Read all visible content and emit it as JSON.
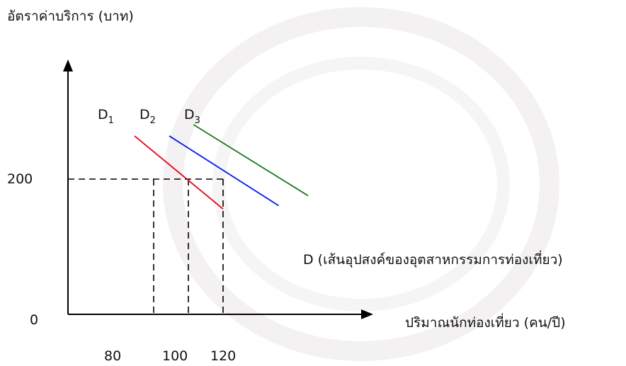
{
  "chart_data": {
    "type": "line",
    "ylabel": "อัตราค่าบริการ (บาท)",
    "xlabel": "ปริมาณนักท่องเที่ยว (คน/ปี)",
    "origin_label": "0",
    "y_tick_labels": [
      "200"
    ],
    "x_tick_labels": [
      "80",
      "100",
      "120"
    ],
    "reference_price": 200,
    "reference_quantities": [
      80,
      100,
      120
    ],
    "series": [
      {
        "name": "D1",
        "base": "D",
        "sub": "1",
        "color": "#e8001c",
        "points": [
          [
            69,
            265
          ],
          [
            120,
            155
          ]
        ]
      },
      {
        "name": "D2",
        "base": "D",
        "sub": "2",
        "color": "#0018f0",
        "points": [
          [
            89,
            265
          ],
          [
            152,
            160
          ]
        ]
      },
      {
        "name": "D3",
        "base": "D",
        "sub": "3",
        "color": "#1a7a1a",
        "points": [
          [
            103,
            282
          ],
          [
            169,
            175
          ]
        ]
      }
    ],
    "curve_annotation": "D (เส้นอุปสงค์ของอุตสาหกรรมการท่องเที่ยว)",
    "grid": false,
    "legend": "top-left"
  }
}
